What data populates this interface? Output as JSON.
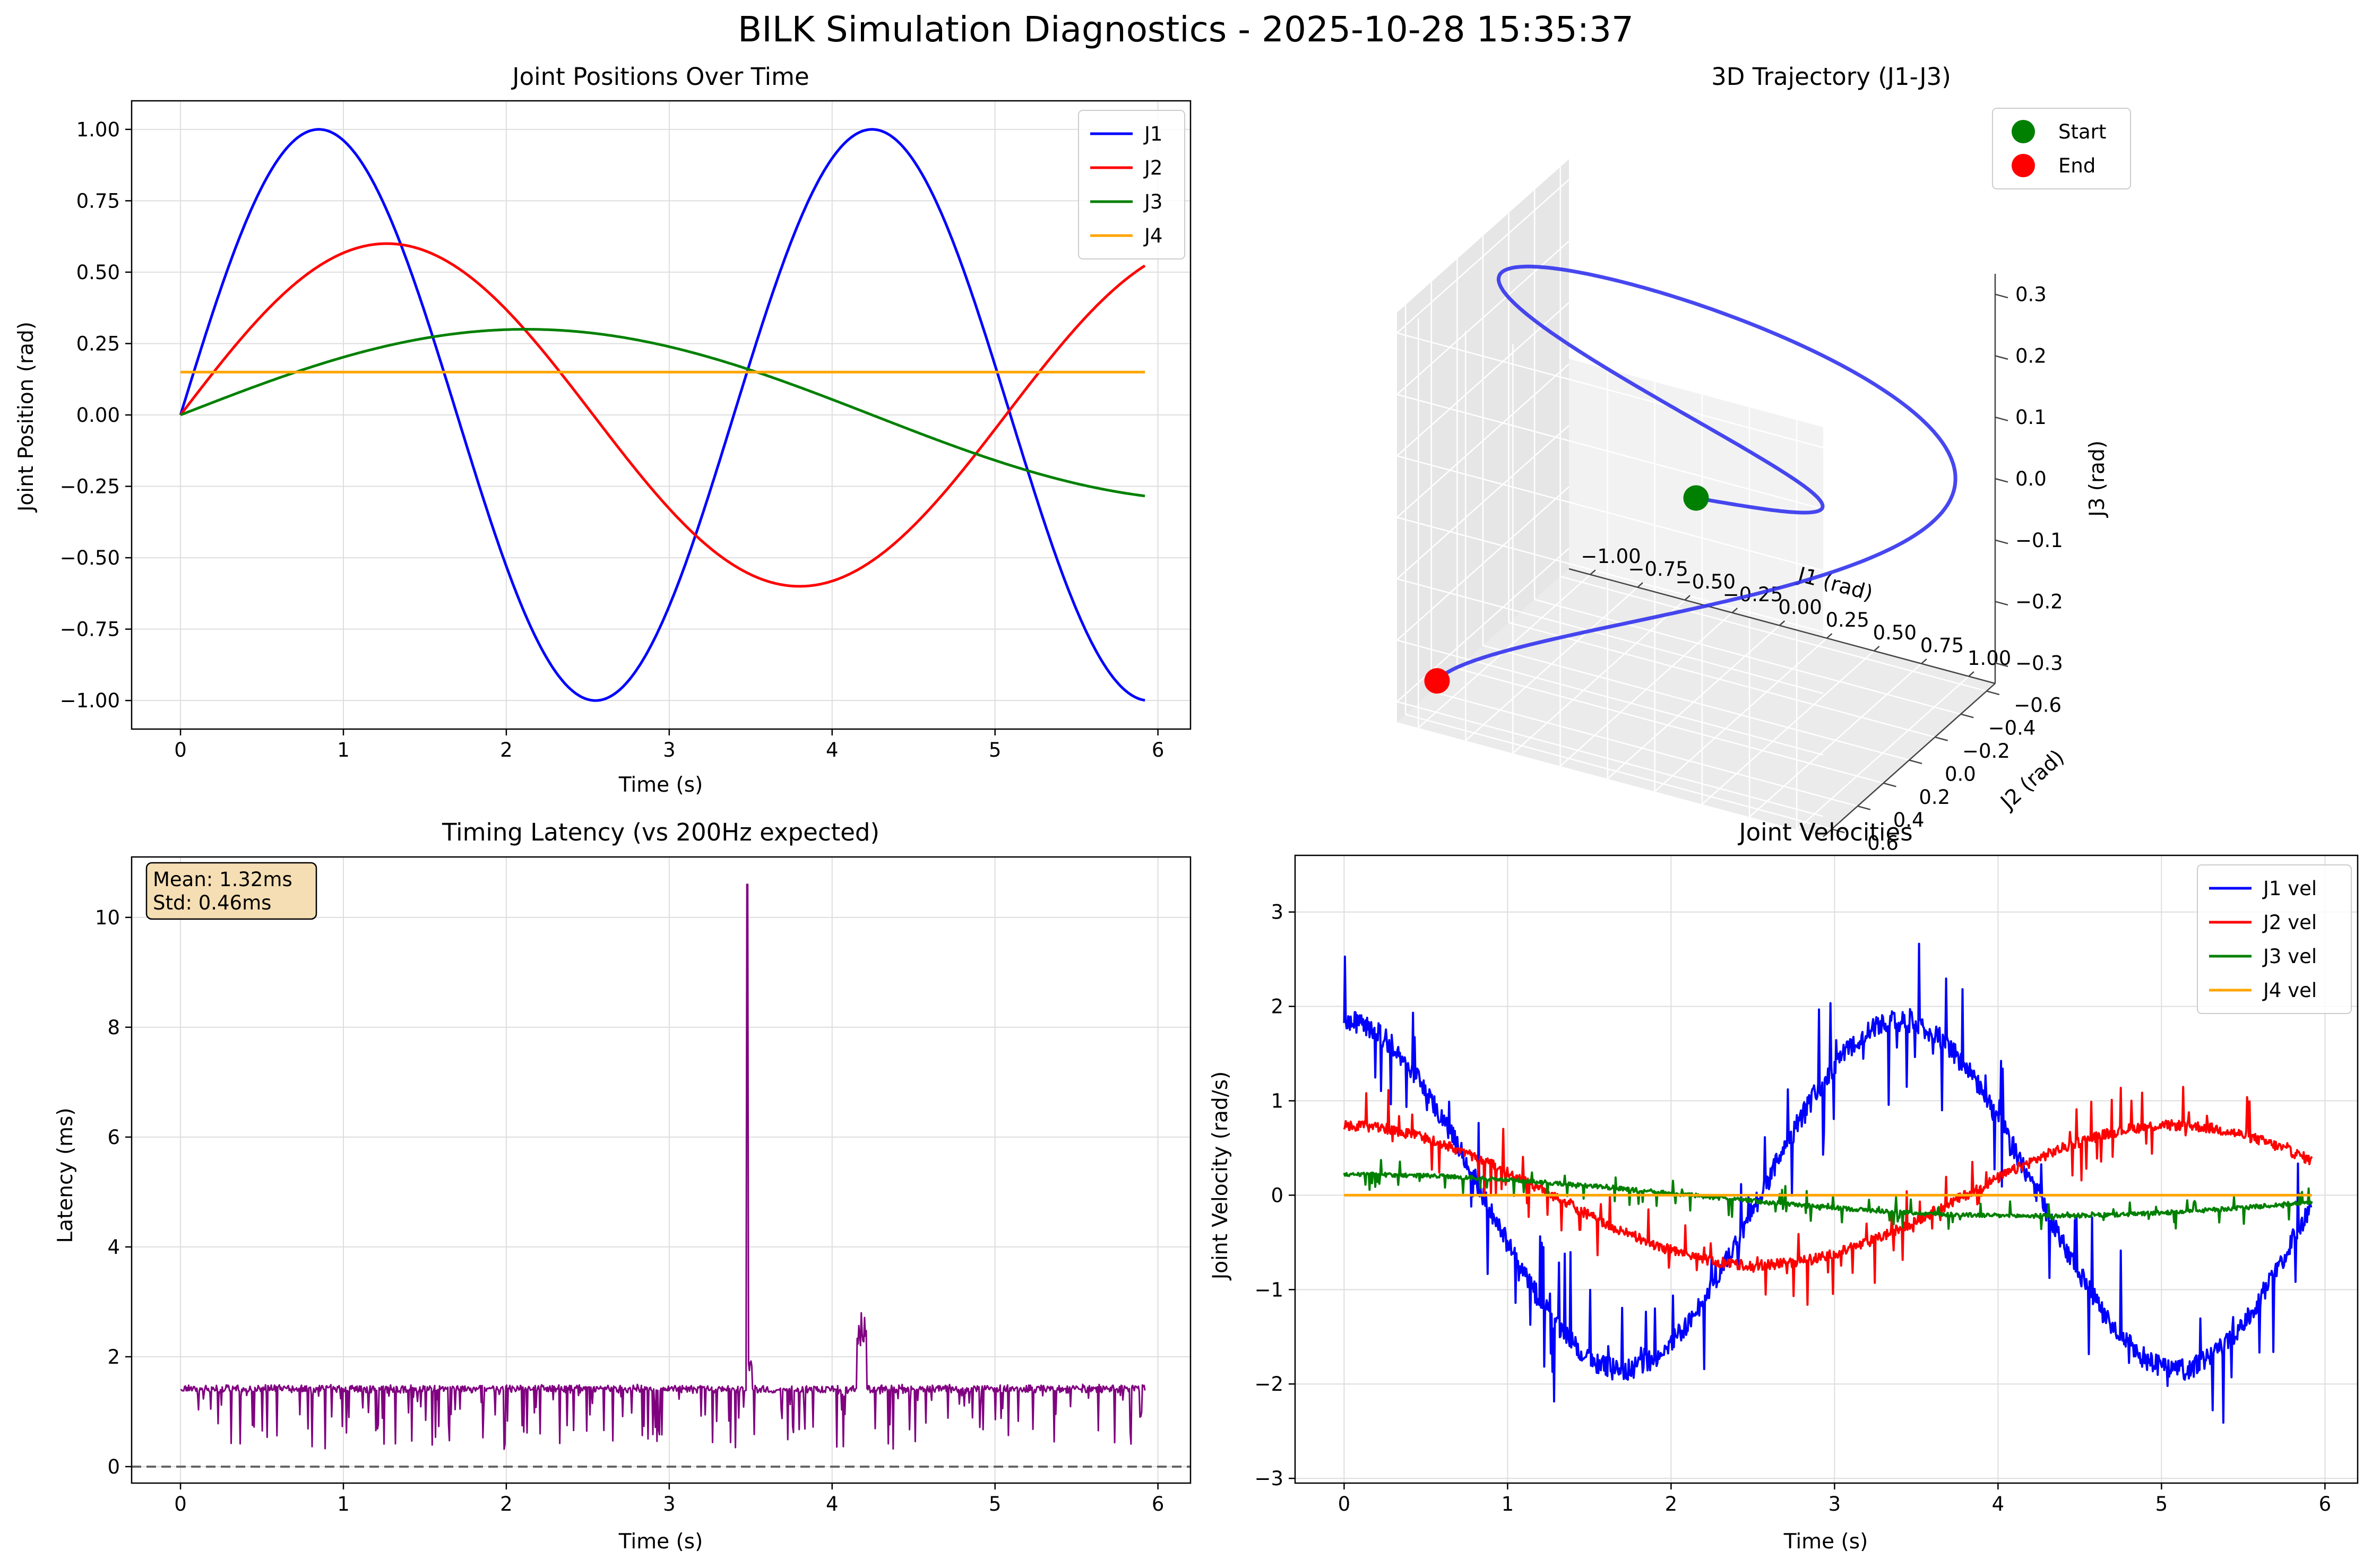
{
  "figure": {
    "title": "BILK Simulation Diagnostics - 2025-10-28 15:35:37"
  },
  "chart_data": [
    {
      "type": "line",
      "title": "Joint Positions Over Time",
      "xlabel": "Time (s)",
      "ylabel": "Joint Position (rad)",
      "xlim": [
        -0.3,
        6.2
      ],
      "ylim": [
        -1.1,
        1.1
      ],
      "xticks": [
        0,
        1,
        2,
        3,
        4,
        5,
        6
      ],
      "yticks": [
        1.0,
        0.75,
        0.5,
        0.25,
        0.0,
        -0.25,
        -0.5,
        -0.75,
        -1.0
      ],
      "ytick_labels": [
        "1.00",
        "0.75",
        "0.50",
        "0.25",
        "0.00",
        "−0.25",
        "−0.50",
        "−0.75",
        "−1.00"
      ],
      "grid": true,
      "legend": "top-right",
      "x_range": [
        0,
        5.92
      ],
      "series": [
        {
          "name": "J1",
          "color": "#0000ff",
          "formula": "sin(1.85t)",
          "sample_points": [
            [
              0,
              0
            ],
            [
              0.85,
              1.0
            ],
            [
              2.52,
              -1.0
            ],
            [
              4.2,
              1.0
            ],
            [
              5.9,
              -1.0
            ]
          ]
        },
        {
          "name": "J2",
          "color": "#ff0000",
          "formula": "0.6 sin(1.24t)",
          "sample_points": [
            [
              0,
              0
            ],
            [
              1.27,
              0.6
            ],
            [
              3.78,
              -0.6
            ],
            [
              5.92,
              0.54
            ]
          ]
        },
        {
          "name": "J3",
          "color": "#008000",
          "formula": "0.3 sin(0.74t)",
          "sample_points": [
            [
              0,
              0
            ],
            [
              2.1,
              0.3
            ],
            [
              5.92,
              -0.29
            ]
          ]
        },
        {
          "name": "J4",
          "color": "#ffa500",
          "formula": "0.15",
          "sample_points": [
            [
              0,
              0.15
            ],
            [
              5.92,
              0.15
            ]
          ]
        }
      ]
    },
    {
      "type": "line3d",
      "title": "3D Trajectory (J1-J3)",
      "xlabel": "J1 (rad)",
      "ylabel": "J2 (rad)",
      "zlabel": "J3 (rad)",
      "xticks": [
        "−1.00",
        "−0.75",
        "−0.50",
        "−0.25",
        "0.00",
        "0.25",
        "0.50",
        "0.75",
        "1.00"
      ],
      "yticks": [
        "−0.6",
        "−0.4",
        "−0.2",
        "0.0",
        "0.2",
        "0.4",
        "0.6"
      ],
      "zticks": [
        "0.3",
        "0.2",
        "0.1",
        "0.0",
        "−0.1",
        "−0.2",
        "−0.3"
      ],
      "legend": "top-right",
      "line_color": "#3333ee",
      "markers": [
        {
          "name": "Start",
          "color": "#008000"
        },
        {
          "name": "End",
          "color": "#ff0000"
        }
      ]
    },
    {
      "type": "line",
      "title": "Timing Latency (vs 200Hz expected)",
      "xlabel": "Time (s)",
      "ylabel": "Latency (ms)",
      "xlim": [
        -0.3,
        6.2
      ],
      "ylim": [
        -0.3,
        11.1
      ],
      "xticks": [
        0,
        1,
        2,
        3,
        4,
        5,
        6
      ],
      "yticks": [
        0,
        2,
        4,
        6,
        8,
        10
      ],
      "grid": true,
      "annotation": [
        "Mean: 1.32ms",
        "Std: 0.46ms"
      ],
      "reference_line": {
        "y": 0,
        "style": "dashed",
        "color": "#666666"
      },
      "series": [
        {
          "name": "",
          "color": "#800080",
          "baseline": 1.5,
          "dips_to": 0.3,
          "x_range": [
            0,
            5.92
          ],
          "spikes": [
            {
              "x": 3.48,
              "y": 10.6
            },
            {
              "x": 4.18,
              "y": 2.8
            }
          ]
        }
      ]
    },
    {
      "type": "line",
      "title": "Joint Velocities",
      "xlabel": "Time (s)",
      "ylabel": "Joint Velocity (rad/s)",
      "xlim": [
        -0.3,
        6.2
      ],
      "ylim": [
        -3.05,
        3.6
      ],
      "xticks": [
        0,
        1,
        2,
        3,
        4,
        5,
        6
      ],
      "yticks": [
        3,
        2,
        1,
        0,
        -1,
        -2,
        -3
      ],
      "ytick_labels": [
        "3",
        "2",
        "1",
        "0",
        "−1",
        "−2",
        "−3"
      ],
      "grid": true,
      "legend": "top-right",
      "series": [
        {
          "name": "J1 vel",
          "color": "#0000ff",
          "formula": "1.85 cos(1.85t) + noise",
          "peak": 3.3,
          "trough": -2.75
        },
        {
          "name": "J2 vel",
          "color": "#ff0000",
          "formula": "0.74 cos(1.24t) + noise",
          "peak": 1.15,
          "trough": -1.05
        },
        {
          "name": "J3 vel",
          "color": "#008000",
          "formula": "0.22 cos(0.74t) + noise"
        },
        {
          "name": "J4 vel",
          "color": "#ffa500",
          "formula": "0"
        }
      ]
    }
  ]
}
